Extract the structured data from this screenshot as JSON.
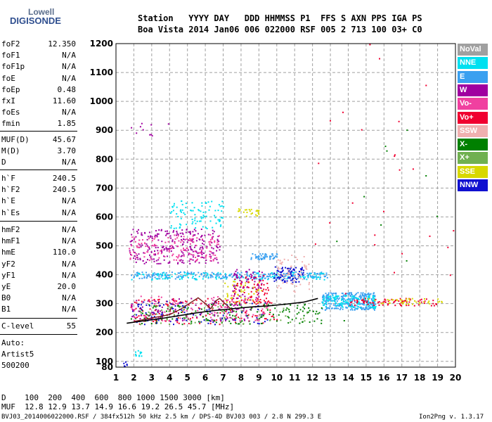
{
  "logo": {
    "line1": "Lowell",
    "line2": "DIGISONDE"
  },
  "header": {
    "line1": "Station   YYYY DAY   DDD HHMMSS P1  FFS S AXN PPS IGA PS",
    "line2": "Boa Vista 2014 Jan06 006 022000 RSF 005 2 713 100 03+ C0"
  },
  "params_group1": [
    {
      "name": "foF2",
      "value": "12.350"
    },
    {
      "name": "foF1",
      "value": "N/A"
    },
    {
      "name": "foF1p",
      "value": "N/A"
    },
    {
      "name": "foE",
      "value": "N/A"
    },
    {
      "name": "foEp",
      "value": "0.48"
    },
    {
      "name": "fxI",
      "value": "11.60"
    },
    {
      "name": "foEs",
      "value": "N/A"
    },
    {
      "name": "fmin",
      "value": "1.85"
    }
  ],
  "params_group2": [
    {
      "name": "MUF(D)",
      "value": "45.67"
    },
    {
      "name": "M(D)",
      "value": "3.70"
    },
    {
      "name": "D",
      "value": "N/A"
    }
  ],
  "params_group3": [
    {
      "name": "h`F",
      "value": "240.5"
    },
    {
      "name": "h`F2",
      "value": "240.5"
    },
    {
      "name": "h`E",
      "value": "N/A"
    },
    {
      "name": "h`Es",
      "value": "N/A"
    }
  ],
  "params_group4": [
    {
      "name": "hmF2",
      "value": "N/A"
    },
    {
      "name": "hmF1",
      "value": "N/A"
    },
    {
      "name": "hmE",
      "value": "110.0"
    },
    {
      "name": "yF2",
      "value": "N/A"
    },
    {
      "name": "yF1",
      "value": "N/A"
    },
    {
      "name": "yE",
      "value": "20.0"
    },
    {
      "name": "B0",
      "value": "N/A"
    },
    {
      "name": "B1",
      "value": "N/A"
    }
  ],
  "c_level": {
    "name": "C-level",
    "value": "55"
  },
  "auto": {
    "line1": "Auto:",
    "line2": "Artist5",
    "line3": "500200"
  },
  "legend": [
    {
      "label": "NoVal",
      "color": "#a0a0a0",
      "text_color": "#ffffff"
    },
    {
      "label": "NNE",
      "color": "#00e0f0",
      "text_color": "#ffffff"
    },
    {
      "label": "E",
      "color": "#3aa0f0",
      "text_color": "#ffffff"
    },
    {
      "label": "W",
      "color": "#a000a0",
      "text_color": "#ffffff"
    },
    {
      "label": "Vo-",
      "color": "#f040a0",
      "text_color": "#ffffff"
    },
    {
      "label": "Vo+",
      "color": "#f00030",
      "text_color": "#ffffff"
    },
    {
      "label": "SSW",
      "color": "#f0b0b0",
      "text_color": "#ffffff"
    },
    {
      "label": "X-",
      "color": "#008000",
      "text_color": "#ffffff"
    },
    {
      "label": "X+",
      "color": "#70b050",
      "text_color": "#ffffff"
    },
    {
      "label": "SSE",
      "color": "#d8d800",
      "text_color": "#ffffff"
    },
    {
      "label": "NNW",
      "color": "#1010d0",
      "text_color": "#ffffff"
    }
  ],
  "footer": {
    "line1": "D    100  200  400  600  800 1000 1500 3000 [km]",
    "line2": "MUF  12.8 12.9 13.7 14.9 16.6 19.2 26.5 45.7 [MHz]",
    "line3": "BVJ03_2014006022000.RSF / 384fx512h 50 kHz 2.5 km / DPS-4D BVJ03 003 / 2.8 N 299.3 E",
    "version": "Ion2Png v. 1.3.17"
  },
  "chart_data": {
    "type": "scatter",
    "xlim": [
      1,
      20
    ],
    "ylim": [
      80,
      1200
    ],
    "x_ticks": [
      1,
      2,
      3,
      4,
      5,
      6,
      7,
      8,
      9,
      10,
      11,
      12,
      13,
      14,
      15,
      16,
      17,
      18,
      19,
      20
    ],
    "y_ticks": [
      80,
      100,
      200,
      300,
      400,
      500,
      600,
      700,
      800,
      900,
      1000,
      1100,
      1200
    ],
    "grid": true,
    "trace_line": {
      "color": "#000000",
      "points": [
        [
          1.6,
          232
        ],
        [
          2.5,
          240
        ],
        [
          3.5,
          248
        ],
        [
          4.5,
          258
        ],
        [
          5.5,
          268
        ],
        [
          6.5,
          276
        ],
        [
          7.5,
          282
        ],
        [
          8.5,
          288
        ],
        [
          9.5,
          292
        ],
        [
          10.5,
          298
        ],
        [
          11.5,
          305
        ],
        [
          12.3,
          318
        ]
      ]
    },
    "profile_line": {
      "color": "#7a1a1a",
      "points": [
        [
          2.0,
          238
        ],
        [
          3.0,
          250
        ],
        [
          4.0,
          262
        ],
        [
          4.6,
          280
        ],
        [
          5.1,
          300
        ],
        [
          5.6,
          320
        ],
        [
          6.0,
          300
        ],
        [
          6.3,
          282
        ],
        [
          6.6,
          310
        ],
        [
          6.8,
          318
        ],
        [
          7.1,
          300
        ],
        [
          7.6,
          272
        ]
      ]
    },
    "clusters": [
      {
        "color": "#a000a0",
        "x": [
          1.7,
          6.8
        ],
        "y": [
          440,
          560
        ],
        "n": 260
      },
      {
        "color": "#f040a0",
        "x": [
          1.7,
          6.8
        ],
        "y": [
          450,
          540
        ],
        "n": 140
      },
      {
        "color": "#00e0f0",
        "x": [
          4.0,
          7.0
        ],
        "y": [
          560,
          660
        ],
        "n": 90
      },
      {
        "color": "#3aa0f0",
        "x": [
          1.8,
          12.8
        ],
        "y": [
          388,
          412
        ],
        "n": 240
      },
      {
        "color": "#00e0f0",
        "x": [
          1.8,
          12.8
        ],
        "y": [
          385,
          410
        ],
        "n": 120
      },
      {
        "color": "#1010d0",
        "x": [
          9.8,
          11.5
        ],
        "y": [
          375,
          430
        ],
        "n": 80
      },
      {
        "color": "#f0b0b0",
        "x": [
          10.0,
          11.8
        ],
        "y": [
          340,
          470
        ],
        "n": 60
      },
      {
        "color": "#3aa0f0",
        "x": [
          12.5,
          15.5
        ],
        "y": [
          280,
          340
        ],
        "n": 280
      },
      {
        "color": "#00e0f0",
        "x": [
          12.5,
          15.5
        ],
        "y": [
          285,
          330
        ],
        "n": 120
      },
      {
        "color": "#f00030",
        "x": [
          14.0,
          19.0
        ],
        "y": [
          295,
          320
        ],
        "n": 80
      },
      {
        "color": "#d8d800",
        "x": [
          15.0,
          19.3
        ],
        "y": [
          300,
          320
        ],
        "n": 40
      },
      {
        "color": "#f00030",
        "x": [
          1.8,
          10.0
        ],
        "y": [
          230,
          320
        ],
        "n": 160
      },
      {
        "color": "#008000",
        "x": [
          1.8,
          12.5
        ],
        "y": [
          230,
          300
        ],
        "n": 170
      },
      {
        "color": "#1010d0",
        "x": [
          1.8,
          9.5
        ],
        "y": [
          230,
          310
        ],
        "n": 110
      },
      {
        "color": "#f040a0",
        "x": [
          1.8,
          9.5
        ],
        "y": [
          240,
          330
        ],
        "n": 110
      },
      {
        "color": "#a000a0",
        "x": [
          1.8,
          8.5
        ],
        "y": [
          240,
          320
        ],
        "n": 80
      },
      {
        "color": "#70b050",
        "x": [
          2.0,
          12.0
        ],
        "y": [
          230,
          300
        ],
        "n": 60
      },
      {
        "color": "#d8d800",
        "x": [
          7.0,
          9.2
        ],
        "y": [
          300,
          380
        ],
        "n": 50
      },
      {
        "color": "#f00030",
        "x": [
          7.5,
          9.5
        ],
        "y": [
          300,
          400
        ],
        "n": 70
      },
      {
        "color": "#a000a0",
        "x": [
          7.5,
          9.2
        ],
        "y": [
          320,
          420
        ],
        "n": 60
      },
      {
        "color": "#3aa0f0",
        "x": [
          8.5,
          10.0
        ],
        "y": [
          455,
          475
        ],
        "n": 50
      },
      {
        "color": "#d8d800",
        "x": [
          7.8,
          9.0
        ],
        "y": [
          600,
          630
        ],
        "n": 25
      },
      {
        "color": "#a000a0",
        "x": [
          1.7,
          4.0
        ],
        "y": [
          880,
          940
        ],
        "n": 10
      },
      {
        "color": "#00e0f0",
        "x": [
          1.8,
          2.5
        ],
        "y": [
          120,
          140
        ],
        "n": 12
      },
      {
        "color": "#f00030",
        "x": [
          12.0,
          20.0
        ],
        "y": [
          300,
          1200
        ],
        "n": 25
      },
      {
        "color": "#008000",
        "x": [
          12.0,
          20.0
        ],
        "y": [
          200,
          1100
        ],
        "n": 10
      },
      {
        "color": "#1010d0",
        "x": [
          1.4,
          1.6
        ],
        "y": [
          84,
          100
        ],
        "n": 6
      }
    ]
  }
}
